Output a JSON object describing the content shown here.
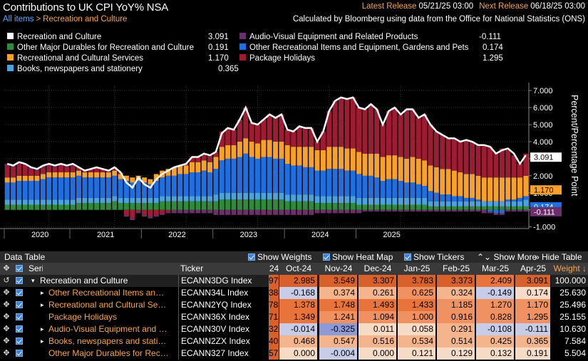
{
  "header": {
    "title": "Contributions to UK CPI YoY% NSA",
    "breadcrumb_root": "All items",
    "breadcrumb_sep": ">",
    "breadcrumb_current": "Recreation and Culture",
    "latest_release_label": "Latest Release",
    "latest_release_value": "05/21/25 03:00",
    "next_release_label": "Next Release",
    "next_release_value": "06/18/25 03:00",
    "source_note": "Calculated by Bloomberg using data from the Office for National Statistics (ONS)"
  },
  "legend": [
    {
      "name": "Recreation and Culture",
      "value": "3.091",
      "color": "#ffffff"
    },
    {
      "name": "Other Major Durables for Recreation and Culture",
      "value": "0.191",
      "color": "#2e8b3a"
    },
    {
      "name": "Recreational and Cultural Services",
      "value": "1.170",
      "color": "#f7a02c"
    },
    {
      "name": "Books, newspapers and stationery",
      "value": "0.365",
      "color": "#4aa3df"
    },
    {
      "name": "Audio-Visual Equipment and Related Products",
      "value": "-0.111",
      "color": "#6b2f6b"
    },
    {
      "name": "Other Recreational Items and Equipment, Gardens and Pets",
      "value": "0.174",
      "color": "#1f6fe0"
    },
    {
      "name": "Package Holidays",
      "value": "1.295",
      "color": "#9e1b32"
    }
  ],
  "chart_data": {
    "type": "bar",
    "stacked": true,
    "ylabel": "Percent/Percentage Point",
    "ylim": [
      -1.1,
      7.3
    ],
    "yticks": [
      "7.000",
      "6.000",
      "5.000",
      "4.000",
      "3.000",
      "2.000",
      "1.000",
      "0.000",
      "-1.000"
    ],
    "ytick_values": [
      7,
      6,
      5,
      4,
      3,
      2,
      1,
      0,
      -1
    ],
    "x_labels": [
      "2020",
      "2021",
      "2022",
      "2023",
      "2024",
      "2025"
    ],
    "grid": true,
    "end_labels": [
      {
        "text": "3.091",
        "value": 3.091,
        "bg": "#ffffff",
        "fg": "#000000"
      },
      {
        "text": "1.170",
        "value": 1.17,
        "bg": "#f7a02c",
        "fg": "#000000"
      },
      {
        "text": "0.174",
        "value": 0.174,
        "bg": "#1f6fe0",
        "fg": "#ffffff"
      },
      {
        "text": "-0.111",
        "value": -0.111,
        "bg": "#6b2f6b",
        "fg": "#ffffff"
      }
    ],
    "total": [
      2.7,
      2.6,
      2.8,
      2.7,
      2.5,
      2.4,
      2.6,
      2.7,
      2.6,
      2.7,
      2.6,
      2.7,
      2.5,
      2.3,
      2.4,
      2.5,
      2.4,
      2.3,
      2.5,
      2.2,
      1.6,
      1.3,
      1.9,
      1.5,
      1.3,
      1.8,
      2.1,
      2.3,
      2.5,
      2.6,
      2.7,
      3.1,
      3.1,
      3.3,
      3.2,
      3.4,
      4.5,
      4.8,
      4.7,
      5.3,
      6.0,
      5.1,
      5.0,
      5.3,
      5.6,
      5.4,
      5.6,
      4.7,
      4.6,
      4.9,
      4.8,
      4.8,
      4.0,
      4.6,
      5.8,
      6.4,
      6.6,
      6.5,
      6.6,
      6.0,
      5.9,
      6.2,
      5.9,
      5.0,
      5.8,
      6.0,
      5.6,
      5.9,
      5.9,
      5.4,
      5.6,
      5.0,
      4.6,
      4.4,
      4.2,
      4.2,
      4.0,
      4.1,
      4.0,
      3.8,
      3.8,
      3.7,
      3.3,
      3.5,
      3.6,
      3.3,
      2.7,
      3.2
    ],
    "series": [
      {
        "name": "Other Major Durables for Recreation and Culture",
        "color": "#2e8b3a",
        "values": [
          0.3,
          0.3,
          0.3,
          0.3,
          0.3,
          0.3,
          0.3,
          0.3,
          0.3,
          0.3,
          0.3,
          0.3,
          0.4,
          0.4,
          0.4,
          0.4,
          0.4,
          0.4,
          0.5,
          0.4,
          0.4,
          0.4,
          0.4,
          0.4,
          0.4,
          0.4,
          0.5,
          0.5,
          0.5,
          0.5,
          0.5,
          0.5,
          0.5,
          0.5,
          0.5,
          0.5,
          0.6,
          0.6,
          0.6,
          0.6,
          0.6,
          0.6,
          0.6,
          0.6,
          0.6,
          0.6,
          0.6,
          0.5,
          0.5,
          0.5,
          0.5,
          0.5,
          0.4,
          0.4,
          0.4,
          0.4,
          0.4,
          0.4,
          0.4,
          0.3,
          0.3,
          0.3,
          0.3,
          0.3,
          0.3,
          0.3,
          0.3,
          0.3,
          0.3,
          0.3,
          0.3,
          0.2,
          0.2,
          0.2,
          0.2,
          0.2,
          0.2,
          0.2,
          0.2,
          0.2,
          0.2,
          0.2,
          0.2,
          0.2,
          0.2,
          0.2,
          0.2,
          0.2
        ]
      },
      {
        "name": "Books, newspapers and stationery",
        "color": "#4aa3df",
        "values": [
          0.3,
          0.3,
          0.3,
          0.3,
          0.3,
          0.3,
          0.3,
          0.3,
          0.3,
          0.3,
          0.3,
          0.3,
          0.3,
          0.3,
          0.3,
          0.3,
          0.3,
          0.3,
          0.3,
          0.3,
          0.3,
          0.3,
          0.3,
          0.3,
          0.3,
          0.3,
          0.3,
          0.3,
          0.3,
          0.3,
          0.3,
          0.3,
          0.3,
          0.3,
          0.3,
          0.4,
          0.4,
          0.4,
          0.4,
          0.4,
          0.4,
          0.4,
          0.4,
          0.4,
          0.4,
          0.4,
          0.4,
          0.4,
          0.4,
          0.4,
          0.4,
          0.4,
          0.4,
          0.4,
          0.4,
          0.4,
          0.4,
          0.4,
          0.4,
          0.4,
          0.4,
          0.4,
          0.4,
          0.4,
          0.4,
          0.4,
          0.4,
          0.4,
          0.4,
          0.4,
          0.4,
          0.3,
          0.3,
          0.3,
          0.3,
          0.3,
          0.3,
          0.3,
          0.3,
          0.3,
          0.3,
          0.3,
          0.3,
          0.3,
          0.3,
          0.3,
          0.3,
          0.4
        ]
      },
      {
        "name": "Other Recreational Items and Equipment, Gardens and Pets",
        "color": "#1f6fe0",
        "values": [
          1.0,
          1.0,
          1.1,
          1.1,
          1.1,
          1.1,
          1.2,
          1.3,
          1.3,
          1.3,
          1.3,
          1.3,
          1.3,
          1.2,
          1.2,
          1.2,
          1.2,
          1.2,
          1.2,
          1.1,
          1.0,
          0.9,
          1.0,
          0.9,
          0.8,
          1.0,
          1.1,
          1.2,
          1.2,
          1.3,
          1.3,
          1.4,
          1.4,
          1.5,
          1.4,
          1.5,
          1.9,
          2.0,
          2.0,
          2.1,
          2.3,
          2.1,
          2.0,
          2.1,
          2.1,
          2.0,
          2.0,
          1.8,
          1.7,
          1.7,
          1.6,
          1.6,
          1.5,
          1.5,
          1.6,
          1.6,
          1.6,
          1.5,
          1.5,
          1.4,
          1.3,
          1.3,
          1.2,
          1.0,
          1.1,
          1.1,
          1.0,
          0.9,
          0.9,
          0.8,
          0.7,
          0.6,
          0.5,
          0.4,
          0.4,
          0.3,
          0.3,
          0.2,
          0.2,
          0.1,
          0.0,
          -0.1,
          -0.2,
          -0.2,
          0.1,
          0.1,
          0.2,
          0.2
        ]
      },
      {
        "name": "Recreational and Cultural Services",
        "color": "#f7a02c",
        "values": [
          0.3,
          0.3,
          0.3,
          0.3,
          0.3,
          0.3,
          0.3,
          0.3,
          0.3,
          0.3,
          0.3,
          0.3,
          0.3,
          0.3,
          0.3,
          0.3,
          0.3,
          0.3,
          0.3,
          0.3,
          0.3,
          0.3,
          0.3,
          0.3,
          0.3,
          0.4,
          0.4,
          0.4,
          0.5,
          0.5,
          0.5,
          0.6,
          0.6,
          0.6,
          0.6,
          0.7,
          0.8,
          0.8,
          0.8,
          0.9,
          0.9,
          0.9,
          0.9,
          1.0,
          1.0,
          1.0,
          1.0,
          1.1,
          1.1,
          1.1,
          1.2,
          1.2,
          1.2,
          1.2,
          1.3,
          1.3,
          1.3,
          1.3,
          1.3,
          1.3,
          1.3,
          1.3,
          1.4,
          1.4,
          1.4,
          1.4,
          1.4,
          1.4,
          1.5,
          1.5,
          1.5,
          1.5,
          1.5,
          1.5,
          1.5,
          1.5,
          1.4,
          1.4,
          1.4,
          1.4,
          1.4,
          1.4,
          1.4,
          1.4,
          1.3,
          1.3,
          1.2,
          1.2
        ]
      },
      {
        "name": "Package Holidays",
        "color": "#9e1b32",
        "values": [
          0.7,
          0.6,
          0.7,
          0.6,
          0.4,
          0.3,
          0.4,
          0.4,
          0.3,
          0.4,
          0.3,
          0.4,
          0.2,
          0.1,
          0.2,
          0.3,
          0.2,
          0.1,
          0.2,
          0.1,
          -0.3,
          -0.5,
          -0.1,
          -0.3,
          -0.4,
          -0.3,
          -0.2,
          -0.1,
          0.0,
          0.0,
          0.1,
          0.3,
          0.3,
          0.4,
          0.4,
          0.3,
          0.9,
          1.0,
          0.9,
          1.3,
          1.8,
          1.1,
          1.1,
          1.2,
          1.5,
          1.4,
          1.6,
          0.9,
          0.9,
          1.2,
          1.1,
          1.1,
          0.5,
          1.1,
          2.1,
          2.7,
          2.9,
          2.9,
          3.0,
          2.6,
          2.6,
          2.9,
          2.6,
          1.9,
          2.6,
          2.8,
          2.5,
          2.9,
          2.8,
          2.4,
          2.7,
          2.4,
          2.1,
          2.0,
          1.8,
          1.9,
          1.8,
          2.0,
          1.9,
          1.8,
          1.9,
          1.8,
          1.5,
          1.7,
          1.6,
          1.3,
          0.8,
          1.3
        ]
      },
      {
        "name": "Audio-Visual Equipment and Related Products",
        "color": "#6b2f6b",
        "values": [
          0.1,
          0.1,
          0.1,
          0.1,
          0.1,
          0.1,
          0.1,
          0.1,
          0.1,
          0.1,
          0.1,
          0.1,
          0.0,
          0.0,
          0.0,
          0.0,
          0.0,
          0.0,
          0.0,
          0.0,
          -0.1,
          -0.1,
          -0.1,
          -0.1,
          -0.1,
          -0.1,
          -0.1,
          -0.1,
          -0.2,
          -0.2,
          -0.2,
          -0.2,
          -0.2,
          -0.2,
          -0.2,
          -0.3,
          -0.3,
          -0.3,
          -0.3,
          -0.3,
          -0.3,
          -0.3,
          -0.3,
          -0.3,
          -0.3,
          -0.3,
          -0.3,
          -0.3,
          -0.3,
          -0.3,
          -0.3,
          -0.3,
          -0.2,
          -0.2,
          -0.2,
          -0.2,
          -0.2,
          -0.2,
          -0.2,
          -0.2,
          -0.1,
          -0.1,
          -0.1,
          -0.1,
          -0.1,
          -0.1,
          -0.1,
          -0.1,
          -0.1,
          -0.1,
          -0.1,
          -0.1,
          -0.1,
          -0.1,
          -0.1,
          -0.1,
          -0.1,
          -0.1,
          -0.1,
          -0.1,
          -0.2,
          -0.1,
          -0.1,
          -0.1,
          -0.1,
          -0.1,
          -0.1,
          -0.1
        ]
      }
    ]
  },
  "table_toolbar": {
    "title": "Data Table",
    "options": [
      "Show Weights",
      "Show Heat Map",
      "Show Tickers",
      "Show More",
      "Hide Table"
    ]
  },
  "table": {
    "header": {
      "series": "Series",
      "ticker": "Ticker",
      "months": [
        "24",
        "Oct-24",
        "Nov-24",
        "Dec-24",
        "Jan-25",
        "Feb-25",
        "Mar-25",
        "Apr-25"
      ],
      "weight": "Weight"
    },
    "rows": [
      {
        "name": "Recreation and Culture",
        "ticker": "ECANN3DG Index",
        "values": [
          "97",
          "2.985",
          "3.549",
          "3.307",
          "3.783",
          "3.373",
          "2.409",
          "3.091"
        ],
        "weight": "100.000"
      },
      {
        "name": "Other Recreational Items an…",
        "ticker": "ECANN34L Index",
        "values": [
          "38",
          "-0.168",
          "0.374",
          "0.261",
          "0.625",
          "0.324",
          "-0.149",
          "0.174"
        ],
        "weight": "25.630"
      },
      {
        "name": "Recreational and Cultural Se…",
        "ticker": "ECANN2YQ Index",
        "values": [
          "78",
          "1.378",
          "1.748",
          "1.493",
          "1.433",
          "1.185",
          "1.270",
          "1.170"
        ],
        "weight": "25.496"
      },
      {
        "name": "Package Holidays",
        "ticker": "ECANN36X Index",
        "values": [
          "71",
          "1.349",
          "1.241",
          "1.094",
          "1.000",
          "0.916",
          "0.828",
          "1.295"
        ],
        "weight": "25.155"
      },
      {
        "name": "Audio-Visual Equipment and …",
        "ticker": "ECANN30V Index",
        "values": [
          "32",
          "-0.014",
          "-0.325",
          "0.011",
          "0.058",
          "0.291",
          "-0.108",
          "-0.111"
        ],
        "weight": "10.630"
      },
      {
        "name": "Books, newspapers and stati…",
        "ticker": "ECANN2ZX Index",
        "values": [
          "40",
          "0.468",
          "0.547",
          "0.516",
          "0.534",
          "0.514",
          "0.425",
          "0.365"
        ],
        "weight": "7.584"
      },
      {
        "name": "Other Major Durables for Rec…",
        "ticker": "ECANN327 Index",
        "values": [
          "57",
          "0.000",
          "-0.004",
          "0.000",
          "0.121",
          "0.129",
          "0.132",
          "0.191"
        ],
        "weight": "5.504"
      }
    ]
  }
}
